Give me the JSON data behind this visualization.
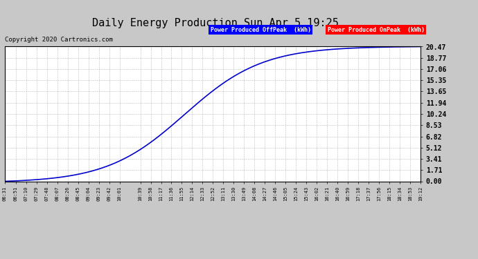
{
  "title": "Daily Energy Production Sun Apr 5 19:25",
  "copyright_text": "Copyright 2020 Cartronics.com",
  "legend_offpeak_label": "Power Produced OffPeak  (kWh)",
  "legend_onpeak_label": "Power Produced OnPeak  (kWh)",
  "legend_offpeak_bg": "#0000ff",
  "legend_onpeak_bg": "#ff0000",
  "background_color": "#c8c8c8",
  "plot_bg_color": "#ffffff",
  "grid_color": "#aaaaaa",
  "title_color": "#000000",
  "ytick_labels": [
    "0.00",
    "1.71",
    "3.41",
    "5.12",
    "6.82",
    "8.53",
    "10.24",
    "11.94",
    "13.65",
    "15.35",
    "17.06",
    "18.77",
    "20.47"
  ],
  "ytick_values": [
    0.0,
    1.71,
    3.41,
    5.12,
    6.82,
    8.53,
    10.24,
    11.94,
    13.65,
    15.35,
    17.06,
    18.77,
    20.47
  ],
  "ymax": 20.47,
  "xtick_labels": [
    "06:31",
    "06:51",
    "07:10",
    "07:29",
    "07:48",
    "08:07",
    "08:26",
    "08:45",
    "09:04",
    "09:23",
    "09:42",
    "10:01",
    "10:39",
    "10:58",
    "11:17",
    "11:36",
    "11:55",
    "12:14",
    "12:33",
    "12:52",
    "13:11",
    "13:30",
    "13:49",
    "14:08",
    "14:27",
    "14:46",
    "15:05",
    "15:24",
    "15:43",
    "16:02",
    "16:21",
    "16:40",
    "16:59",
    "17:18",
    "17:37",
    "17:56",
    "18:15",
    "18:34",
    "18:53",
    "19:12"
  ],
  "line_color": "#0000cc",
  "line_width": 1.2,
  "inflection_time": "12:00",
  "k": 0.014
}
